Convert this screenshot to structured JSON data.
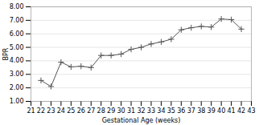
{
  "chart_data": {
    "type": "line",
    "x": [
      22,
      23,
      24,
      25,
      26,
      27,
      28,
      29,
      30,
      31,
      32,
      33,
      34,
      35,
      36,
      37,
      38,
      39,
      40,
      41,
      42
    ],
    "values": [
      2.55,
      2.1,
      3.9,
      3.55,
      3.6,
      3.5,
      4.4,
      4.4,
      4.5,
      4.85,
      5.0,
      5.25,
      5.4,
      5.6,
      6.3,
      6.45,
      6.55,
      6.5,
      7.1,
      7.05,
      6.35
    ],
    "xlabel": "Gestational Age (weeks)",
    "ylabel": "BPR",
    "xlim": [
      21,
      43
    ],
    "ylim": [
      1,
      8
    ],
    "xticks": [
      21,
      22,
      23,
      24,
      25,
      26,
      27,
      28,
      29,
      30,
      31,
      32,
      33,
      34,
      35,
      36,
      37,
      38,
      39,
      40,
      41,
      42,
      43
    ],
    "yticks": [
      {
        "value": 1,
        "label": "1.00"
      },
      {
        "value": 2,
        "label": "2.00"
      },
      {
        "value": 3,
        "label": "3.00"
      },
      {
        "value": 4,
        "label": "4.00"
      },
      {
        "value": 5,
        "label": "5.00"
      },
      {
        "value": 6,
        "label": "6.00"
      },
      {
        "value": 7,
        "label": "7.00"
      },
      {
        "value": 8,
        "label": "8.00"
      }
    ],
    "color": "#555555",
    "marker": "plus",
    "grid": "y"
  }
}
